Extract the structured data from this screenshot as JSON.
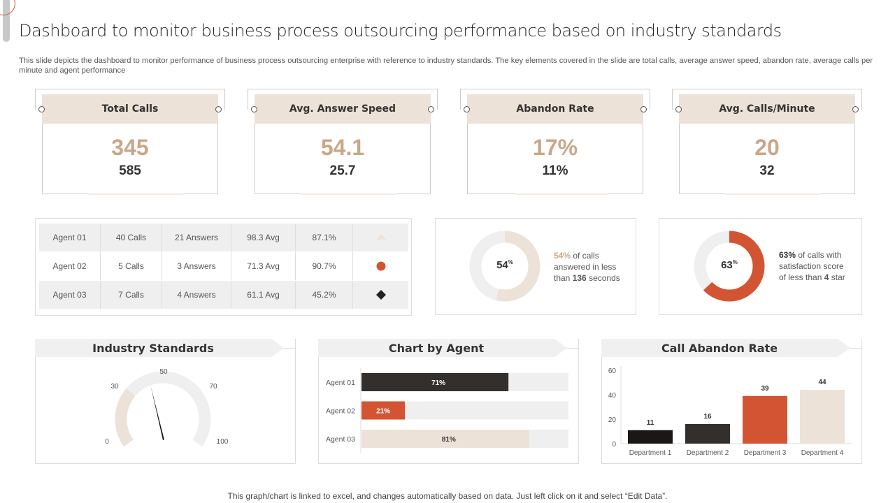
{
  "title": "Dashboard to monitor business process outsourcing performance based on industry standards",
  "description": "This slide depicts the dashboard to monitor performance of business process outsourcing enterprise with reference to industry standards. The key elements covered in the slide are total calls, average answer speed, abandon rate, average calls per minute and agent performance",
  "kpis": [
    {
      "label": "Total Calls",
      "value": "345",
      "sub": "585"
    },
    {
      "label": "Avg. Answer Speed",
      "value": "54.1",
      "sub": "25.7"
    },
    {
      "label": "Abandon Rate",
      "value": "17%",
      "sub": "11%"
    },
    {
      "label": "Avg. Calls/Minute",
      "value": "20",
      "sub": "32"
    }
  ],
  "agents": [
    {
      "name": "Agent 01",
      "calls": "40 Calls",
      "answers": "21 Answers",
      "avg": "98.3 Avg",
      "pct": "87.1%",
      "icon": "triangle-icon"
    },
    {
      "name": "Agent 02",
      "calls": "5 Calls",
      "answers": "3 Answers",
      "avg": "71.3 Avg",
      "pct": "90.7%",
      "icon": "circle-icon"
    },
    {
      "name": "Agent 03",
      "calls": "7 Calls",
      "answers": "4 Answers",
      "avg": "61.1 Avg",
      "pct": "45.2%",
      "icon": "diamond-icon"
    }
  ],
  "donuts": [
    {
      "value": 54,
      "center": "54",
      "unit": "%",
      "pct": "54%",
      "t1": " of calls",
      "t2": "answered in less",
      "t3a": "than ",
      "t3b": "136",
      "t3c": " seconds",
      "color": "#ede2d8",
      "pct_color": "#c8a888"
    },
    {
      "value": 63,
      "center": "63",
      "unit": "%",
      "pct": "63%",
      "t1": " of calls with",
      "t2": "satisfaction score",
      "t3a": "of less than ",
      "t3b": "4",
      "t3c": " star",
      "color": "#d35433",
      "pct_color": "#333"
    }
  ],
  "colors": {
    "accent": "#d35433",
    "beige": "#ede2d8",
    "tan": "#c8a888",
    "dark": "#332f2c",
    "grey": "#efefef"
  },
  "panels": {
    "industry": "Industry Standards",
    "agent": "Chart by Agent",
    "abandon": "Call Abandon Rate"
  },
  "chart_data": [
    {
      "type": "gauge",
      "title": "Industry Standards",
      "ticks": [
        "0",
        "30",
        "50",
        "70",
        "100"
      ],
      "range": [
        0,
        100
      ],
      "filled_to": 30,
      "needle": 42
    },
    {
      "type": "bar",
      "orientation": "horizontal",
      "title": "Chart by Agent",
      "categories": [
        "Agent 01",
        "Agent 02",
        "Agent 03"
      ],
      "values": [
        71,
        21,
        81
      ],
      "labels": [
        "71%",
        "21%",
        "81%"
      ],
      "colors": [
        "#332f2c",
        "#d35433",
        "#ede2d8"
      ],
      "xlim": [
        0,
        100
      ]
    },
    {
      "type": "bar",
      "title": "Call Abandon Rate",
      "categories": [
        "Department 1",
        "Department 2",
        "Department 3",
        "Department 4"
      ],
      "values": [
        11,
        16,
        39,
        44
      ],
      "colors": [
        "#1a1716",
        "#332f2c",
        "#d35433",
        "#ede2d8"
      ],
      "ylim": [
        0,
        60
      ],
      "yticks": [
        "0",
        "20",
        "40",
        "60"
      ]
    }
  ],
  "footer": "This graph/chart is linked to excel,  and changes automatically based on data. Just left click on it and select “Edit Data”."
}
